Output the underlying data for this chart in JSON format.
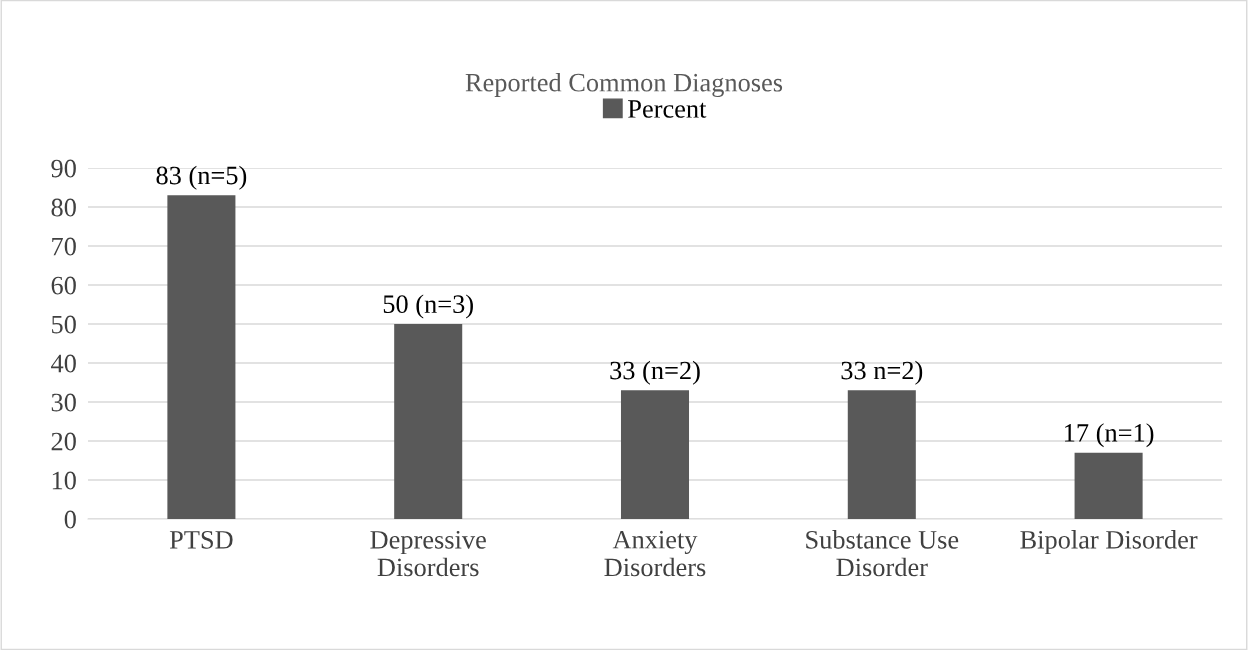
{
  "chart_data": {
    "type": "bar",
    "title": "Reported Common Diagnoses",
    "categories": [
      "PTSD",
      "Depressive\nDisorders",
      "Anxiety\nDisorders",
      "Substance Use\nDisorder",
      "Bipolar Disorder"
    ],
    "series": [
      {
        "name": "Percent",
        "color": "#595959",
        "values": [
          83,
          50,
          33,
          33,
          17
        ],
        "value_labels": [
          "83 (n=5)",
          "50 (n=3)",
          "33 (n=2)",
          "33 n=2)",
          "17 (n=1)"
        ]
      }
    ],
    "ylim": [
      0,
      90
    ],
    "yticks": [
      0,
      10,
      20,
      30,
      40,
      50,
      60,
      70,
      80,
      90
    ],
    "grid": "y",
    "legend": "top"
  }
}
